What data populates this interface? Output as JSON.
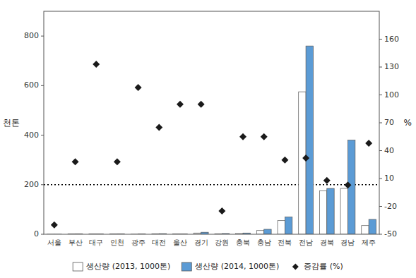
{
  "chart_data": {
    "type": "bar",
    "categories": [
      "서울",
      "부산",
      "대구",
      "인천",
      "광주",
      "대전",
      "울산",
      "경기",
      "강원",
      "충북",
      "충남",
      "전북",
      "전남",
      "경북",
      "경남",
      "제주"
    ],
    "series": [
      {
        "name": "생산량 (2013, 1000톤)",
        "color": "#ffffff",
        "values": [
          0.3,
          1.5,
          1.0,
          1.5,
          0.5,
          2.0,
          1.0,
          5.0,
          2.0,
          3.0,
          15.0,
          55.0,
          575.0,
          175.0,
          185.0,
          35.0
        ]
      },
      {
        "name": "생산량 (2014, 1000톤)",
        "color": "#5B9BD5",
        "values": [
          0.3,
          2.0,
          1.5,
          2.0,
          1.0,
          2.5,
          1.5,
          8.0,
          3.0,
          5.0,
          20.0,
          70.0,
          760.0,
          185.0,
          380.0,
          60.0
        ]
      },
      {
        "name": "증감률 (%)",
        "type": "scatter",
        "axis": "y2",
        "color": "#1a1a1a",
        "marker": "diamond",
        "values": [
          -40.0,
          28.0,
          133.0,
          28.0,
          108.0,
          65.0,
          90.0,
          90.0,
          -25.0,
          55.0,
          55.0,
          30.0,
          32.0,
          8.0,
          3.0,
          48.0
        ]
      }
    ],
    "ylabel": "천톤",
    "y2label": "%",
    "ylim": [
      0,
      900
    ],
    "yticks": [
      0,
      200,
      400,
      600,
      800
    ],
    "y2lim": [
      -50,
      190
    ],
    "y2ticks": [
      -50,
      -20,
      10,
      40,
      70,
      100,
      130,
      160
    ],
    "reference_line": 200,
    "grid": false,
    "legend": "bottom"
  }
}
